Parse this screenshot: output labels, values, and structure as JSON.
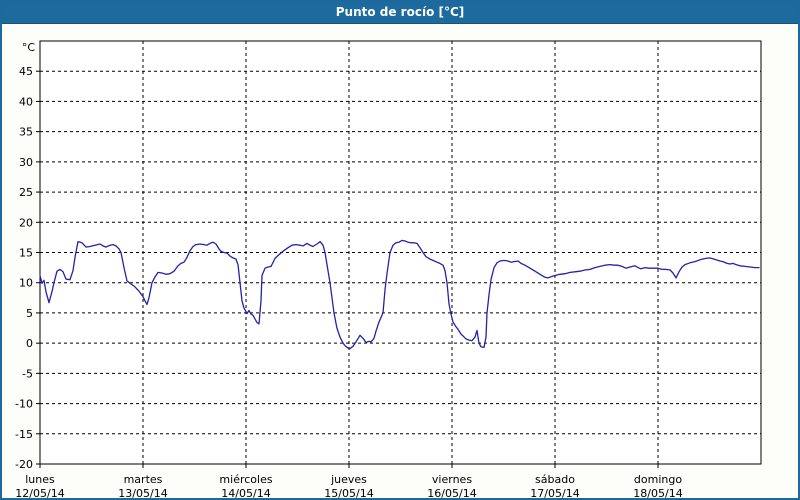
{
  "window": {
    "title": "Punto de rocío [°C]"
  },
  "colors": {
    "titlebar_bg": "#1d6a9e",
    "window_border": "#1d699c",
    "line": "#2222aa",
    "grid": "#000000",
    "plot_background": "#ffffff",
    "label_text": "#000000"
  },
  "chart_data": {
    "type": "line",
    "title": "Punto de rocío [°C]",
    "y_unit_label": "°C",
    "ylim": [
      -20,
      50
    ],
    "y_ticks": [
      45,
      40,
      35,
      30,
      25,
      20,
      15,
      10,
      5,
      0,
      -5,
      -10,
      -15,
      -20
    ],
    "xlim_days": [
      0,
      7
    ],
    "grid": "dashed",
    "legend": "none",
    "x_day_labels": [
      {
        "label": "lunes",
        "date": "12/05/14"
      },
      {
        "label": "martes",
        "date": "13/05/14"
      },
      {
        "label": "miércoles",
        "date": "14/05/14"
      },
      {
        "label": "jueves",
        "date": "15/05/14"
      },
      {
        "label": "viernes",
        "date": "16/05/14"
      },
      {
        "label": "sábado",
        "date": "17/05/14"
      },
      {
        "label": "domingo",
        "date": "18/05/14"
      }
    ],
    "series": [
      {
        "name": "Punto de rocío [°C]",
        "color": "#2222aa",
        "x_unit": "days_from_2014-05-12",
        "points": [
          [
            0.0,
            11.2
          ],
          [
            0.019,
            9.9
          ],
          [
            0.039,
            10.4
          ],
          [
            0.058,
            8.5
          ],
          [
            0.087,
            6.7
          ],
          [
            0.117,
            8.6
          ],
          [
            0.136,
            10.0
          ],
          [
            0.165,
            11.9
          ],
          [
            0.194,
            12.2
          ],
          [
            0.223,
            11.8
          ],
          [
            0.252,
            10.6
          ],
          [
            0.291,
            10.5
          ],
          [
            0.32,
            12.0
          ],
          [
            0.34,
            14.2
          ],
          [
            0.369,
            16.8
          ],
          [
            0.408,
            16.6
          ],
          [
            0.447,
            15.9
          ],
          [
            0.485,
            16.0
          ],
          [
            0.534,
            16.2
          ],
          [
            0.583,
            16.4
          ],
          [
            0.612,
            16.1
          ],
          [
            0.641,
            15.9
          ],
          [
            0.68,
            16.2
          ],
          [
            0.709,
            16.3
          ],
          [
            0.738,
            16.1
          ],
          [
            0.767,
            15.6
          ],
          [
            0.786,
            15.0
          ],
          [
            0.816,
            12.5
          ],
          [
            0.845,
            10.3
          ],
          [
            0.883,
            9.8
          ],
          [
            0.922,
            9.3
          ],
          [
            0.961,
            8.6
          ],
          [
            1.0,
            7.7
          ],
          [
            1.019,
            7.0
          ],
          [
            1.039,
            6.4
          ],
          [
            1.058,
            7.5
          ],
          [
            1.087,
            10.0
          ],
          [
            1.117,
            11.0
          ],
          [
            1.146,
            11.7
          ],
          [
            1.184,
            11.6
          ],
          [
            1.223,
            11.4
          ],
          [
            1.262,
            11.5
          ],
          [
            1.301,
            11.9
          ],
          [
            1.34,
            12.8
          ],
          [
            1.369,
            13.2
          ],
          [
            1.398,
            13.4
          ],
          [
            1.427,
            14.2
          ],
          [
            1.456,
            15.3
          ],
          [
            1.485,
            16.0
          ],
          [
            1.515,
            16.3
          ],
          [
            1.553,
            16.4
          ],
          [
            1.592,
            16.3
          ],
          [
            1.621,
            16.2
          ],
          [
            1.65,
            16.5
          ],
          [
            1.68,
            16.7
          ],
          [
            1.709,
            16.4
          ],
          [
            1.738,
            15.6
          ],
          [
            1.757,
            15.2
          ],
          [
            1.786,
            15.0
          ],
          [
            1.816,
            14.9
          ],
          [
            1.845,
            14.4
          ],
          [
            1.874,
            14.1
          ],
          [
            1.903,
            13.9
          ],
          [
            1.922,
            13.0
          ],
          [
            1.942,
            10.0
          ],
          [
            1.961,
            7.0
          ],
          [
            1.981,
            5.8
          ],
          [
            2.01,
            4.9
          ],
          [
            2.029,
            5.4
          ],
          [
            2.049,
            4.8
          ],
          [
            2.068,
            4.6
          ],
          [
            2.087,
            4.0
          ],
          [
            2.107,
            3.4
          ],
          [
            2.126,
            3.2
          ],
          [
            2.146,
            7.0
          ],
          [
            2.155,
            11.2
          ],
          [
            2.184,
            12.4
          ],
          [
            2.214,
            12.6
          ],
          [
            2.243,
            12.7
          ],
          [
            2.282,
            14.0
          ],
          [
            2.311,
            14.5
          ],
          [
            2.359,
            15.2
          ],
          [
            2.408,
            15.8
          ],
          [
            2.447,
            16.2
          ],
          [
            2.485,
            16.3
          ],
          [
            2.524,
            16.2
          ],
          [
            2.553,
            16.1
          ],
          [
            2.592,
            16.5
          ],
          [
            2.621,
            16.2
          ],
          [
            2.65,
            16.0
          ],
          [
            2.689,
            16.4
          ],
          [
            2.718,
            16.8
          ],
          [
            2.748,
            16.2
          ],
          [
            2.767,
            15.0
          ],
          [
            2.796,
            12.0
          ],
          [
            2.816,
            10.0
          ],
          [
            2.835,
            7.5
          ],
          [
            2.854,
            5.0
          ],
          [
            2.883,
            2.5
          ],
          [
            2.913,
            1.0
          ],
          [
            2.942,
            0.0
          ],
          [
            2.961,
            -0.4
          ],
          [
            2.99,
            -0.8
          ],
          [
            3.01,
            -0.9
          ],
          [
            3.039,
            -0.5
          ],
          [
            3.068,
            0.2
          ],
          [
            3.107,
            1.3
          ],
          [
            3.136,
            0.8
          ],
          [
            3.165,
            0.1
          ],
          [
            3.194,
            0.3
          ],
          [
            3.214,
            0.2
          ],
          [
            3.243,
            0.8
          ],
          [
            3.262,
            2.0
          ],
          [
            3.291,
            3.5
          ],
          [
            3.33,
            5.0
          ],
          [
            3.35,
            9.0
          ],
          [
            3.369,
            11.5
          ],
          [
            3.398,
            15.0
          ],
          [
            3.427,
            16.2
          ],
          [
            3.456,
            16.6
          ],
          [
            3.485,
            16.7
          ],
          [
            3.515,
            17.0
          ],
          [
            3.544,
            16.9
          ],
          [
            3.573,
            16.7
          ],
          [
            3.602,
            16.6
          ],
          [
            3.631,
            16.6
          ],
          [
            3.66,
            16.5
          ],
          [
            3.689,
            15.8
          ],
          [
            3.718,
            15.0
          ],
          [
            3.748,
            14.3
          ],
          [
            3.786,
            13.9
          ],
          [
            3.816,
            13.7
          ],
          [
            3.854,
            13.4
          ],
          [
            3.883,
            13.2
          ],
          [
            3.913,
            12.9
          ],
          [
            3.932,
            12.0
          ],
          [
            3.951,
            10.0
          ],
          [
            3.971,
            6.5
          ],
          [
            3.99,
            4.8
          ],
          [
            4.01,
            3.5
          ],
          [
            4.039,
            2.7
          ],
          [
            4.058,
            2.3
          ],
          [
            4.087,
            1.5
          ],
          [
            4.107,
            1.2
          ],
          [
            4.136,
            0.7
          ],
          [
            4.165,
            0.5
          ],
          [
            4.194,
            0.4
          ],
          [
            4.223,
            1.0
          ],
          [
            4.243,
            2.1
          ],
          [
            4.262,
            0.0
          ],
          [
            4.282,
            -0.6
          ],
          [
            4.311,
            -0.7
          ],
          [
            4.33,
            1.0
          ],
          [
            4.34,
            5.0
          ],
          [
            4.359,
            8.0
          ],
          [
            4.379,
            10.5
          ],
          [
            4.408,
            12.5
          ],
          [
            4.437,
            13.3
          ],
          [
            4.466,
            13.6
          ],
          [
            4.505,
            13.7
          ],
          [
            4.544,
            13.6
          ],
          [
            4.573,
            13.4
          ],
          [
            4.602,
            13.5
          ],
          [
            4.641,
            13.6
          ],
          [
            4.67,
            13.2
          ],
          [
            4.709,
            12.9
          ],
          [
            4.757,
            12.4
          ],
          [
            4.796,
            12.0
          ],
          [
            4.825,
            11.7
          ],
          [
            4.864,
            11.3
          ],
          [
            4.903,
            10.9
          ],
          [
            4.932,
            10.8
          ],
          [
            4.961,
            11.0
          ],
          [
            5.0,
            11.2
          ],
          [
            5.049,
            11.4
          ],
          [
            5.097,
            11.5
          ],
          [
            5.146,
            11.7
          ],
          [
            5.194,
            11.8
          ],
          [
            5.243,
            11.9
          ],
          [
            5.291,
            12.1
          ],
          [
            5.34,
            12.2
          ],
          [
            5.388,
            12.5
          ],
          [
            5.437,
            12.7
          ],
          [
            5.485,
            12.9
          ],
          [
            5.534,
            13.0
          ],
          [
            5.573,
            12.9
          ],
          [
            5.612,
            12.9
          ],
          [
            5.65,
            12.7
          ],
          [
            5.689,
            12.4
          ],
          [
            5.728,
            12.6
          ],
          [
            5.777,
            12.8
          ],
          [
            5.806,
            12.5
          ],
          [
            5.835,
            12.3
          ],
          [
            5.874,
            12.5
          ],
          [
            5.913,
            12.4
          ],
          [
            5.951,
            12.4
          ],
          [
            6.0,
            12.4
          ],
          [
            6.039,
            12.2
          ],
          [
            6.078,
            12.2
          ],
          [
            6.117,
            12.1
          ],
          [
            6.146,
            11.6
          ],
          [
            6.175,
            10.8
          ],
          [
            6.204,
            11.8
          ],
          [
            6.233,
            12.6
          ],
          [
            6.262,
            13.0
          ],
          [
            6.311,
            13.3
          ],
          [
            6.359,
            13.5
          ],
          [
            6.408,
            13.8
          ],
          [
            6.456,
            14.0
          ],
          [
            6.495,
            14.1
          ],
          [
            6.524,
            14.0
          ],
          [
            6.563,
            13.8
          ],
          [
            6.602,
            13.6
          ],
          [
            6.631,
            13.5
          ],
          [
            6.67,
            13.2
          ],
          [
            6.699,
            13.1
          ],
          [
            6.728,
            13.2
          ],
          [
            6.757,
            13.0
          ],
          [
            6.796,
            12.8
          ],
          [
            6.845,
            12.7
          ],
          [
            6.893,
            12.6
          ],
          [
            6.942,
            12.5
          ],
          [
            6.981,
            12.5
          ]
        ]
      }
    ]
  }
}
